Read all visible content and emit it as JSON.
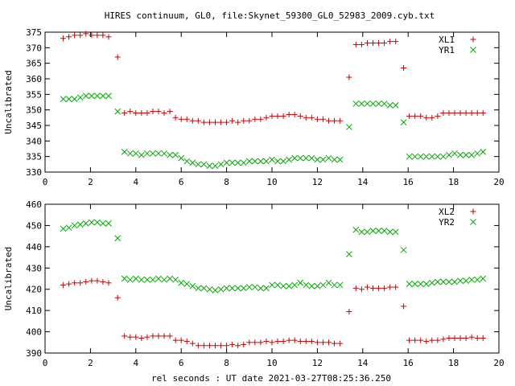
{
  "title": "HIRES continuum, GL0, file:Skynet_59300_GL0_52983_2009.cyb.txt",
  "xlabel": "rel seconds : UT date 2021-03-27T08:25:36.250",
  "colors": {
    "left": "#cc0000",
    "right": "#00aa00"
  },
  "chart_data": [
    {
      "type": "scatter",
      "ylabel": "Uncalibrated",
      "xlim": [
        0,
        20
      ],
      "ylim": [
        330,
        375
      ],
      "xticks": [
        0,
        2,
        4,
        6,
        8,
        10,
        12,
        14,
        16,
        18,
        20
      ],
      "yticks": [
        330,
        335,
        340,
        345,
        350,
        355,
        360,
        365,
        370,
        375
      ],
      "legend_position": "top-right",
      "series": [
        {
          "name": "XL1",
          "marker": "plus",
          "color": "#cc0000",
          "x": [
            0.8,
            1.05,
            1.3,
            1.55,
            1.8,
            2.05,
            2.3,
            2.55,
            2.8,
            3.2,
            3.5,
            3.75,
            4.0,
            4.25,
            4.5,
            4.75,
            5.0,
            5.25,
            5.5,
            5.75,
            6.0,
            6.25,
            6.5,
            6.75,
            7.0,
            7.25,
            7.5,
            7.75,
            8.0,
            8.25,
            8.5,
            8.75,
            9.0,
            9.25,
            9.5,
            9.75,
            10.0,
            10.25,
            10.5,
            10.75,
            11.0,
            11.25,
            11.5,
            11.75,
            12.0,
            12.25,
            12.5,
            12.75,
            13.0,
            13.4,
            13.7,
            13.95,
            14.2,
            14.45,
            14.7,
            14.95,
            15.2,
            15.45,
            15.8,
            16.05,
            16.3,
            16.55,
            16.8,
            17.05,
            17.3,
            17.55,
            17.8,
            18.05,
            18.3,
            18.55,
            18.8,
            19.05,
            19.3
          ],
          "y": [
            373,
            373.5,
            374,
            374,
            374.5,
            374,
            374,
            374,
            373.5,
            367,
            349,
            349.5,
            349,
            349,
            349,
            349.5,
            349.5,
            349,
            349.5,
            347.5,
            347,
            347,
            346.5,
            346.5,
            346,
            346,
            346,
            346,
            346,
            346.5,
            346,
            346.5,
            346.5,
            347,
            347,
            347.5,
            348,
            348,
            348,
            348.5,
            348.5,
            348,
            347.5,
            347.5,
            347,
            347,
            346.5,
            346.5,
            346.5,
            360.5,
            371,
            371,
            371.5,
            371.5,
            371.5,
            371.5,
            372,
            372,
            363.5,
            348,
            348,
            348,
            347.5,
            347.5,
            348,
            349,
            349,
            349,
            349,
            349,
            349,
            349,
            349
          ]
        },
        {
          "name": "YR1",
          "marker": "cross",
          "color": "#00aa00",
          "x": [
            0.8,
            1.05,
            1.3,
            1.55,
            1.8,
            2.05,
            2.3,
            2.55,
            2.8,
            3.2,
            3.5,
            3.75,
            4.0,
            4.25,
            4.5,
            4.75,
            5.0,
            5.25,
            5.5,
            5.75,
            6.0,
            6.25,
            6.5,
            6.75,
            7.0,
            7.25,
            7.5,
            7.75,
            8.0,
            8.25,
            8.5,
            8.75,
            9.0,
            9.25,
            9.5,
            9.75,
            10.0,
            10.25,
            10.5,
            10.75,
            11.0,
            11.25,
            11.5,
            11.75,
            12.0,
            12.25,
            12.5,
            12.75,
            13.0,
            13.4,
            13.7,
            13.95,
            14.2,
            14.45,
            14.7,
            14.95,
            15.2,
            15.45,
            15.8,
            16.05,
            16.3,
            16.55,
            16.8,
            17.05,
            17.3,
            17.55,
            17.8,
            18.05,
            18.3,
            18.55,
            18.8,
            19.05,
            19.3
          ],
          "y": [
            353.5,
            353.5,
            353.5,
            354,
            354.5,
            354.5,
            354.5,
            354.5,
            354.5,
            349.5,
            336.5,
            336,
            336,
            335.5,
            336,
            336,
            336,
            336,
            335.5,
            335.5,
            334.5,
            333.5,
            333,
            332.5,
            332.5,
            332,
            332,
            332.5,
            333,
            333,
            333,
            333,
            333.5,
            333.5,
            333.5,
            333.5,
            334,
            333.5,
            333.5,
            334,
            334.5,
            334.5,
            334.5,
            334.5,
            334,
            334,
            334.5,
            334,
            334,
            344.5,
            352,
            352,
            352,
            352,
            352,
            352,
            351.5,
            351.5,
            346,
            335,
            335,
            335,
            335,
            335,
            335,
            335,
            335.5,
            336,
            335.5,
            335.5,
            335.5,
            336,
            336.5
          ]
        }
      ]
    },
    {
      "type": "scatter",
      "ylabel": "Uncalibrated",
      "xlim": [
        0,
        20
      ],
      "ylim": [
        390,
        460
      ],
      "xticks": [
        0,
        2,
        4,
        6,
        8,
        10,
        12,
        14,
        16,
        18,
        20
      ],
      "yticks": [
        390,
        400,
        410,
        420,
        430,
        440,
        450,
        460
      ],
      "legend_position": "top-right",
      "series": [
        {
          "name": "XL2",
          "marker": "plus",
          "color": "#cc0000",
          "x": [
            0.8,
            1.05,
            1.3,
            1.55,
            1.8,
            2.05,
            2.3,
            2.55,
            2.8,
            3.2,
            3.5,
            3.75,
            4.0,
            4.25,
            4.5,
            4.75,
            5.0,
            5.25,
            5.5,
            5.75,
            6.0,
            6.25,
            6.5,
            6.75,
            7.0,
            7.25,
            7.5,
            7.75,
            8.0,
            8.25,
            8.5,
            8.75,
            9.0,
            9.25,
            9.5,
            9.75,
            10.0,
            10.25,
            10.5,
            10.75,
            11.0,
            11.25,
            11.5,
            11.75,
            12.0,
            12.25,
            12.5,
            12.75,
            13.0,
            13.4,
            13.7,
            13.95,
            14.2,
            14.45,
            14.7,
            14.95,
            15.2,
            15.45,
            15.8,
            16.05,
            16.3,
            16.55,
            16.8,
            17.05,
            17.3,
            17.55,
            17.8,
            18.05,
            18.3,
            18.55,
            18.8,
            19.05,
            19.3
          ],
          "y": [
            422,
            422.5,
            423,
            423,
            423.5,
            424,
            424,
            423.5,
            423,
            416,
            398,
            397.5,
            397.5,
            397,
            397.5,
            398,
            398,
            398,
            398,
            396,
            396,
            395.5,
            394.5,
            393.5,
            393.5,
            393.5,
            393.5,
            393.5,
            393.5,
            394,
            393.5,
            394,
            395,
            395,
            395,
            395.5,
            395,
            395.5,
            395.5,
            396,
            396,
            395.5,
            395.5,
            395.5,
            395,
            395,
            395,
            394.5,
            394.5,
            409.5,
            420.5,
            420,
            421,
            420.5,
            420.5,
            420.5,
            421,
            421,
            412,
            396,
            396,
            396,
            395.5,
            396,
            396,
            396.5,
            397,
            397,
            397,
            397,
            397.5,
            397,
            397
          ]
        },
        {
          "name": "YR2",
          "marker": "cross",
          "color": "#00aa00",
          "x": [
            0.8,
            1.05,
            1.3,
            1.55,
            1.8,
            2.05,
            2.3,
            2.55,
            2.8,
            3.2,
            3.5,
            3.75,
            4.0,
            4.25,
            4.5,
            4.75,
            5.0,
            5.25,
            5.5,
            5.75,
            6.0,
            6.25,
            6.5,
            6.75,
            7.0,
            7.25,
            7.5,
            7.75,
            8.0,
            8.25,
            8.5,
            8.75,
            9.0,
            9.25,
            9.5,
            9.75,
            10.0,
            10.25,
            10.5,
            10.75,
            11.0,
            11.25,
            11.5,
            11.75,
            12.0,
            12.25,
            12.5,
            12.75,
            13.0,
            13.4,
            13.7,
            13.95,
            14.2,
            14.45,
            14.7,
            14.95,
            15.2,
            15.45,
            15.8,
            16.05,
            16.3,
            16.55,
            16.8,
            17.05,
            17.3,
            17.55,
            17.8,
            18.05,
            18.3,
            18.55,
            18.8,
            19.05,
            19.3
          ],
          "y": [
            448.5,
            449,
            450,
            450.5,
            451,
            451.5,
            451.5,
            451,
            451,
            444,
            425,
            424.5,
            425,
            424.5,
            424.5,
            424.5,
            425,
            424.5,
            425,
            424.5,
            423,
            422.5,
            421.5,
            420.5,
            420.5,
            420,
            419.5,
            420,
            420.5,
            420.5,
            420.5,
            420.5,
            421,
            421,
            420.5,
            420.5,
            422,
            422,
            421.5,
            421.5,
            422,
            423,
            422,
            421.5,
            421.5,
            422,
            423,
            422,
            422,
            436.5,
            448,
            447,
            447,
            447.5,
            447.5,
            447.5,
            447,
            447,
            438.5,
            422.5,
            422.5,
            422.5,
            422.5,
            423,
            423.5,
            423.5,
            423.5,
            423.5,
            424,
            424,
            424.5,
            424.5,
            425
          ]
        }
      ]
    }
  ]
}
